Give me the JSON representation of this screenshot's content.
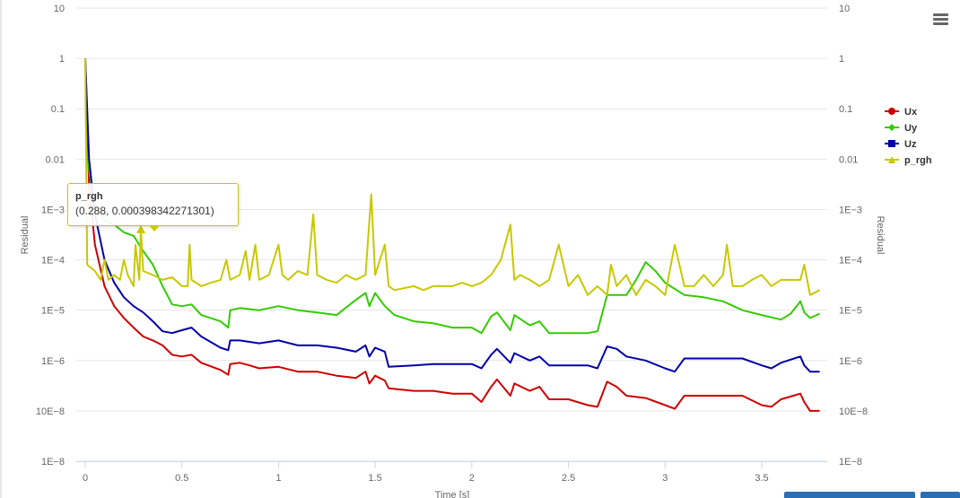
{
  "chart_data": {
    "type": "line",
    "title": "",
    "xlabel": "Time [s]",
    "ylabel_left": "Residual",
    "ylabel_right": "Residual",
    "yscale": "log",
    "ylim": [
      1e-08,
      10
    ],
    "xlim": [
      0,
      3.8
    ],
    "grid": true,
    "legend_position": "right",
    "x_ticks": [
      "0",
      "0.5",
      "1",
      "1.5",
      "2",
      "2.5",
      "3",
      "3.5"
    ],
    "x_tick_values": [
      0,
      0.5,
      1,
      1.5,
      2,
      2.5,
      3,
      3.5
    ],
    "y_ticks": [
      "1E−8",
      "10E−8",
      "1E−6",
      "1E−5",
      "1E−4",
      "1E−3",
      "0.01",
      "0.1",
      "1",
      "10"
    ],
    "y_tick_values": [
      1e-08,
      1e-07,
      1e-06,
      1e-05,
      0.0001,
      0.001,
      0.01,
      0.1,
      1,
      10
    ],
    "series": [
      {
        "name": "Ux",
        "color": "#cc0000",
        "marker": "circle",
        "points": [
          [
            0,
            1
          ],
          [
            0.02,
            0.003
          ],
          [
            0.05,
            0.0002
          ],
          [
            0.1,
            3e-05
          ],
          [
            0.15,
            1.2e-05
          ],
          [
            0.2,
            7e-06
          ],
          [
            0.25,
            4.5e-06
          ],
          [
            0.3,
            3e-06
          ],
          [
            0.35,
            2.5e-06
          ],
          [
            0.4,
            2e-06
          ],
          [
            0.45,
            1.3e-06
          ],
          [
            0.5,
            1.2e-06
          ],
          [
            0.55,
            1.3e-06
          ],
          [
            0.6,
            9e-07
          ],
          [
            0.7,
            6.5e-07
          ],
          [
            0.74,
            5.2e-07
          ],
          [
            0.75,
            8.5e-07
          ],
          [
            0.8,
            9e-07
          ],
          [
            0.85,
            8e-07
          ],
          [
            0.9,
            7e-07
          ],
          [
            1.0,
            7.5e-07
          ],
          [
            1.1,
            6e-07
          ],
          [
            1.2,
            6e-07
          ],
          [
            1.3,
            5e-07
          ],
          [
            1.4,
            4.5e-07
          ],
          [
            1.45,
            6e-07
          ],
          [
            1.47,
            3.5e-07
          ],
          [
            1.5,
            5e-07
          ],
          [
            1.55,
            4e-07
          ],
          [
            1.57,
            2.8e-07
          ],
          [
            1.7,
            2.5e-07
          ],
          [
            1.8,
            2.5e-07
          ],
          [
            1.9,
            2.2e-07
          ],
          [
            2.0,
            2.2e-07
          ],
          [
            2.05,
            1.5e-07
          ],
          [
            2.1,
            3e-07
          ],
          [
            2.13,
            4.2e-07
          ],
          [
            2.2,
            2e-07
          ],
          [
            2.22,
            3.5e-07
          ],
          [
            2.3,
            2.5e-07
          ],
          [
            2.35,
            3e-07
          ],
          [
            2.4,
            1.7e-07
          ],
          [
            2.5,
            1.7e-07
          ],
          [
            2.6,
            1.3e-07
          ],
          [
            2.65,
            1.2e-07
          ],
          [
            2.7,
            3.8e-07
          ],
          [
            2.75,
            3e-07
          ],
          [
            2.8,
            2e-07
          ],
          [
            2.9,
            1.8e-07
          ],
          [
            3.0,
            1.3e-07
          ],
          [
            3.05,
            1.1e-07
          ],
          [
            3.1,
            2e-07
          ],
          [
            3.3,
            2e-07
          ],
          [
            3.4,
            2e-07
          ],
          [
            3.5,
            1.3e-07
          ],
          [
            3.55,
            1.2e-07
          ],
          [
            3.6,
            1.7e-07
          ],
          [
            3.7,
            2.2e-07
          ],
          [
            3.72,
            1.5e-07
          ],
          [
            3.75,
            1e-07
          ],
          [
            3.8,
            1e-07
          ]
        ]
      },
      {
        "name": "Uy",
        "color": "#33cc00",
        "marker": "diamond",
        "points": [
          [
            0,
            1
          ],
          [
            0.02,
            0.006
          ],
          [
            0.05,
            0.0012
          ],
          [
            0.1,
            0.0006
          ],
          [
            0.15,
            0.0005
          ],
          [
            0.2,
            0.00035
          ],
          [
            0.25,
            0.0003
          ],
          [
            0.3,
            0.00015
          ],
          [
            0.35,
            8e-05
          ],
          [
            0.4,
            3e-05
          ],
          [
            0.45,
            1.3e-05
          ],
          [
            0.5,
            1.2e-05
          ],
          [
            0.55,
            1.3e-05
          ],
          [
            0.6,
            8e-06
          ],
          [
            0.7,
            6e-06
          ],
          [
            0.74,
            4.5e-06
          ],
          [
            0.75,
            1e-05
          ],
          [
            0.8,
            1.1e-05
          ],
          [
            0.9,
            1e-05
          ],
          [
            1.0,
            1.2e-05
          ],
          [
            1.1,
            1e-05
          ],
          [
            1.2,
            9e-06
          ],
          [
            1.3,
            8e-06
          ],
          [
            1.4,
            1.6e-05
          ],
          [
            1.45,
            2.2e-05
          ],
          [
            1.47,
            1.2e-05
          ],
          [
            1.5,
            2.2e-05
          ],
          [
            1.55,
            1.2e-05
          ],
          [
            1.6,
            8e-06
          ],
          [
            1.7,
            6e-06
          ],
          [
            1.8,
            5.5e-06
          ],
          [
            1.9,
            4.5e-06
          ],
          [
            2.0,
            4.5e-06
          ],
          [
            2.05,
            3.5e-06
          ],
          [
            2.1,
            7.5e-06
          ],
          [
            2.13,
            9e-06
          ],
          [
            2.2,
            4e-06
          ],
          [
            2.22,
            8e-06
          ],
          [
            2.3,
            5e-06
          ],
          [
            2.35,
            6e-06
          ],
          [
            2.4,
            3.5e-06
          ],
          [
            2.5,
            3.5e-06
          ],
          [
            2.6,
            3.5e-06
          ],
          [
            2.65,
            3.8e-06
          ],
          [
            2.7,
            2e-05
          ],
          [
            2.75,
            2e-05
          ],
          [
            2.8,
            2e-05
          ],
          [
            2.85,
            4e-05
          ],
          [
            2.9,
            9e-05
          ],
          [
            2.95,
            6e-05
          ],
          [
            3.0,
            3.5e-05
          ],
          [
            3.1,
            2e-05
          ],
          [
            3.2,
            1.8e-05
          ],
          [
            3.3,
            1.5e-05
          ],
          [
            3.4,
            1e-05
          ],
          [
            3.5,
            8e-06
          ],
          [
            3.6,
            6.5e-06
          ],
          [
            3.65,
            8.5e-06
          ],
          [
            3.7,
            1.5e-05
          ],
          [
            3.72,
            9e-06
          ],
          [
            3.75,
            7e-06
          ],
          [
            3.8,
            8.5e-06
          ]
        ]
      },
      {
        "name": "Uz",
        "color": "#0000aa",
        "marker": "square",
        "points": [
          [
            0,
            1
          ],
          [
            0.02,
            0.01
          ],
          [
            0.05,
            0.0008
          ],
          [
            0.1,
            0.0001
          ],
          [
            0.15,
            3.5e-05
          ],
          [
            0.2,
            1.8e-05
          ],
          [
            0.25,
            1.2e-05
          ],
          [
            0.3,
            9e-06
          ],
          [
            0.35,
            6e-06
          ],
          [
            0.4,
            3.8e-06
          ],
          [
            0.45,
            3.5e-06
          ],
          [
            0.5,
            4e-06
          ],
          [
            0.55,
            4.5e-06
          ],
          [
            0.6,
            3e-06
          ],
          [
            0.7,
            1.8e-06
          ],
          [
            0.74,
            1.6e-06
          ],
          [
            0.75,
            2.5e-06
          ],
          [
            0.8,
            2.5e-06
          ],
          [
            0.9,
            2.2e-06
          ],
          [
            1.0,
            2.5e-06
          ],
          [
            1.1,
            2e-06
          ],
          [
            1.2,
            2e-06
          ],
          [
            1.3,
            1.8e-06
          ],
          [
            1.4,
            1.5e-06
          ],
          [
            1.45,
            2e-06
          ],
          [
            1.47,
            1.2e-06
          ],
          [
            1.5,
            1.8e-06
          ],
          [
            1.55,
            1.5e-06
          ],
          [
            1.57,
            7.5e-07
          ],
          [
            1.7,
            8e-07
          ],
          [
            1.8,
            8.5e-07
          ],
          [
            1.9,
            8.5e-07
          ],
          [
            2.0,
            8.5e-07
          ],
          [
            2.05,
            7e-07
          ],
          [
            2.1,
            1.3e-06
          ],
          [
            2.13,
            1.7e-06
          ],
          [
            2.2,
            9e-07
          ],
          [
            2.22,
            1.4e-06
          ],
          [
            2.3,
            1e-06
          ],
          [
            2.35,
            1.2e-06
          ],
          [
            2.4,
            8e-07
          ],
          [
            2.5,
            8e-07
          ],
          [
            2.6,
            8e-07
          ],
          [
            2.65,
            7e-07
          ],
          [
            2.7,
            1.9e-06
          ],
          [
            2.75,
            1.7e-06
          ],
          [
            2.8,
            1.2e-06
          ],
          [
            2.9,
            1e-06
          ],
          [
            3.0,
            7e-07
          ],
          [
            3.05,
            6e-07
          ],
          [
            3.1,
            1.1e-06
          ],
          [
            3.3,
            1.1e-06
          ],
          [
            3.4,
            1.1e-06
          ],
          [
            3.5,
            8e-07
          ],
          [
            3.55,
            7e-07
          ],
          [
            3.6,
            9e-07
          ],
          [
            3.7,
            1.2e-06
          ],
          [
            3.72,
            8e-07
          ],
          [
            3.75,
            6e-07
          ],
          [
            3.8,
            6e-07
          ]
        ]
      },
      {
        "name": "p_rgh",
        "color": "#c8c800",
        "marker": "triangle",
        "points": [
          [
            0,
            1
          ],
          [
            0.01,
            8e-05
          ],
          [
            0.05,
            6e-05
          ],
          [
            0.08,
            4e-05
          ],
          [
            0.1,
            0.0001
          ],
          [
            0.12,
            4e-05
          ],
          [
            0.15,
            5e-05
          ],
          [
            0.18,
            4e-05
          ],
          [
            0.2,
            0.0001
          ],
          [
            0.22,
            5e-05
          ],
          [
            0.25,
            3e-05
          ],
          [
            0.26,
            0.0002
          ],
          [
            0.28,
            4e-05
          ],
          [
            0.288,
            0.000398342271301
          ],
          [
            0.3,
            6e-05
          ],
          [
            0.35,
            5e-05
          ],
          [
            0.4,
            4e-05
          ],
          [
            0.45,
            4.5e-05
          ],
          [
            0.5,
            3e-05
          ],
          [
            0.53,
            3e-05
          ],
          [
            0.54,
            0.0002
          ],
          [
            0.55,
            4e-05
          ],
          [
            0.6,
            3e-05
          ],
          [
            0.65,
            3.5e-05
          ],
          [
            0.7,
            4e-05
          ],
          [
            0.73,
            0.0001
          ],
          [
            0.75,
            4e-05
          ],
          [
            0.8,
            5e-05
          ],
          [
            0.83,
            0.00015
          ],
          [
            0.85,
            4e-05
          ],
          [
            0.88,
            0.0002
          ],
          [
            0.9,
            4e-05
          ],
          [
            0.95,
            5e-05
          ],
          [
            1.0,
            0.0002
          ],
          [
            1.02,
            5e-05
          ],
          [
            1.05,
            4e-05
          ],
          [
            1.1,
            6e-05
          ],
          [
            1.15,
            5e-05
          ],
          [
            1.18,
            0.0008
          ],
          [
            1.2,
            5e-05
          ],
          [
            1.25,
            4e-05
          ],
          [
            1.3,
            3.5e-05
          ],
          [
            1.35,
            5e-05
          ],
          [
            1.4,
            4e-05
          ],
          [
            1.45,
            5e-05
          ],
          [
            1.48,
            0.002
          ],
          [
            1.5,
            5e-05
          ],
          [
            1.55,
            0.0002
          ],
          [
            1.57,
            3e-05
          ],
          [
            1.6,
            2.5e-05
          ],
          [
            1.7,
            3e-05
          ],
          [
            1.75,
            2.5e-05
          ],
          [
            1.8,
            3e-05
          ],
          [
            1.9,
            3e-05
          ],
          [
            1.95,
            3.5e-05
          ],
          [
            2.0,
            3e-05
          ],
          [
            2.05,
            3.5e-05
          ],
          [
            2.1,
            5e-05
          ],
          [
            2.15,
            0.0001
          ],
          [
            2.2,
            0.0005
          ],
          [
            2.22,
            4e-05
          ],
          [
            2.25,
            5e-05
          ],
          [
            2.3,
            4e-05
          ],
          [
            2.35,
            3e-05
          ],
          [
            2.4,
            4e-05
          ],
          [
            2.45,
            0.0002
          ],
          [
            2.5,
            3e-05
          ],
          [
            2.55,
            5e-05
          ],
          [
            2.6,
            2e-05
          ],
          [
            2.65,
            3e-05
          ],
          [
            2.7,
            2e-05
          ],
          [
            2.72,
            8e-05
          ],
          [
            2.75,
            3e-05
          ],
          [
            2.8,
            5e-05
          ],
          [
            2.85,
            2e-05
          ],
          [
            2.9,
            4e-05
          ],
          [
            2.95,
            3e-05
          ],
          [
            3.0,
            2e-05
          ],
          [
            3.05,
            0.0002
          ],
          [
            3.1,
            3e-05
          ],
          [
            3.15,
            3e-05
          ],
          [
            3.2,
            5e-05
          ],
          [
            3.25,
            3e-05
          ],
          [
            3.3,
            5e-05
          ],
          [
            3.32,
            0.0002
          ],
          [
            3.35,
            3e-05
          ],
          [
            3.4,
            3e-05
          ],
          [
            3.45,
            4e-05
          ],
          [
            3.5,
            5e-05
          ],
          [
            3.55,
            3e-05
          ],
          [
            3.6,
            4e-05
          ],
          [
            3.65,
            4e-05
          ],
          [
            3.7,
            4e-05
          ],
          [
            3.72,
            8e-05
          ],
          [
            3.75,
            2e-05
          ],
          [
            3.8,
            2.5e-05
          ]
        ]
      }
    ],
    "tooltip": {
      "series": "p_rgh",
      "x": 0.288,
      "y": 0.000398342271301
    }
  },
  "tooltip": {
    "title": "p_rgh",
    "value": "(0.288, 0.000398342271301)"
  },
  "menu": {
    "icon": "hamburger-menu-icon"
  }
}
